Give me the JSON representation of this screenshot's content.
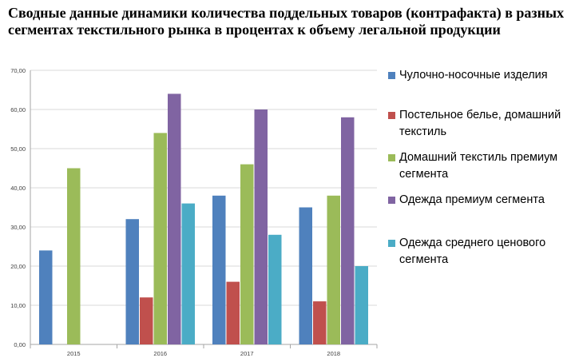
{
  "chart_data": {
    "type": "bar",
    "title": "Сводные данные динамики количества поддельных товаров (контрафакта) в разных сегментах текстильного рынка в процентах к объему легальной продукции",
    "xlabel": "",
    "ylabel": "",
    "ylim": [
      0,
      70
    ],
    "yticks": [
      0,
      10,
      20,
      30,
      40,
      50,
      60,
      70
    ],
    "ytick_labels": [
      "0,00",
      "10,00",
      "20,00",
      "30,00",
      "40,00",
      "50,00",
      "60,00",
      "70,00"
    ],
    "categories": [
      "2015",
      "2016",
      "2017",
      "2018"
    ],
    "grid": true,
    "legend_position": "right",
    "series": [
      {
        "name": "Чулочно-носочные изделия",
        "color": "#4F81BD",
        "values": [
          24,
          32,
          38,
          35
        ]
      },
      {
        "name": "Постельное белье, домашний текстиль",
        "color": "#C0504D",
        "values": [
          null,
          12,
          16,
          11
        ]
      },
      {
        "name": "Домашний текстиль премиум сегмента",
        "color": "#9BBB59",
        "values": [
          45,
          54,
          46,
          38
        ]
      },
      {
        "name": "Одежда премиум сегмента",
        "color": "#8064A2",
        "values": [
          null,
          64,
          60,
          58
        ]
      },
      {
        "name": "Одежда среднего ценового сегмента",
        "color": "#4BACC6",
        "values": [
          null,
          36,
          28,
          20
        ]
      }
    ]
  }
}
